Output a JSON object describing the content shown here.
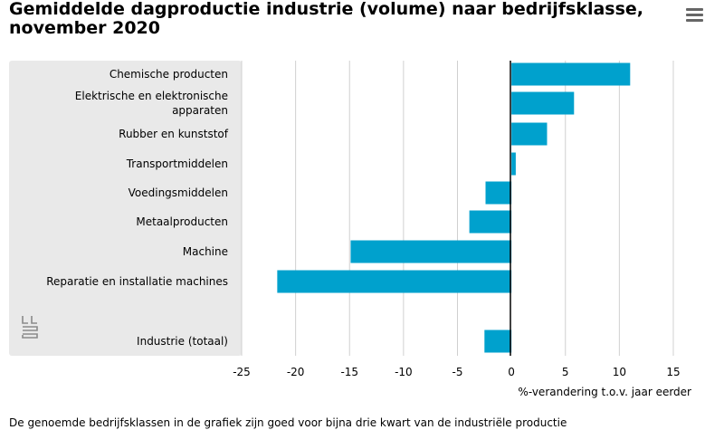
{
  "title": "Gemiddelde dagproductie industrie (volume) naar bedrijfsklasse, november 2020",
  "menu_icon": "hamburger-menu-icon",
  "logo_icon": "cbs-logo-icon",
  "footnote": "De genoemde bedrijfsklassen in de grafiek zijn goed voor bijna drie kwart van de industriële productie",
  "colors": {
    "bar": "#00a1cd",
    "band": "#e9e9e9",
    "grid": "#d0d0d0",
    "axis": "#000000"
  },
  "chart_data": {
    "type": "bar",
    "orientation": "horizontal",
    "categories": [
      "Chemische producten",
      "Elektrische en elektronische apparaten",
      "Rubber en kunststof",
      "Transportmiddelen",
      "Voedingsmiddelen",
      "Metaalproducten",
      "Machine",
      "Reparatie en installatie machines",
      "Industrie (totaal)"
    ],
    "values": [
      11,
      5.8,
      3.3,
      0.4,
      -2.4,
      -3.9,
      -14.9,
      -21.7,
      -2.5
    ],
    "xlabel": "%-verandering t.o.v. jaar eerder",
    "xlim": [
      -25,
      15
    ],
    "xticks": [
      -25,
      -20,
      -15,
      -10,
      -5,
      0,
      5,
      10,
      15
    ],
    "grid": true,
    "legend": "none"
  }
}
